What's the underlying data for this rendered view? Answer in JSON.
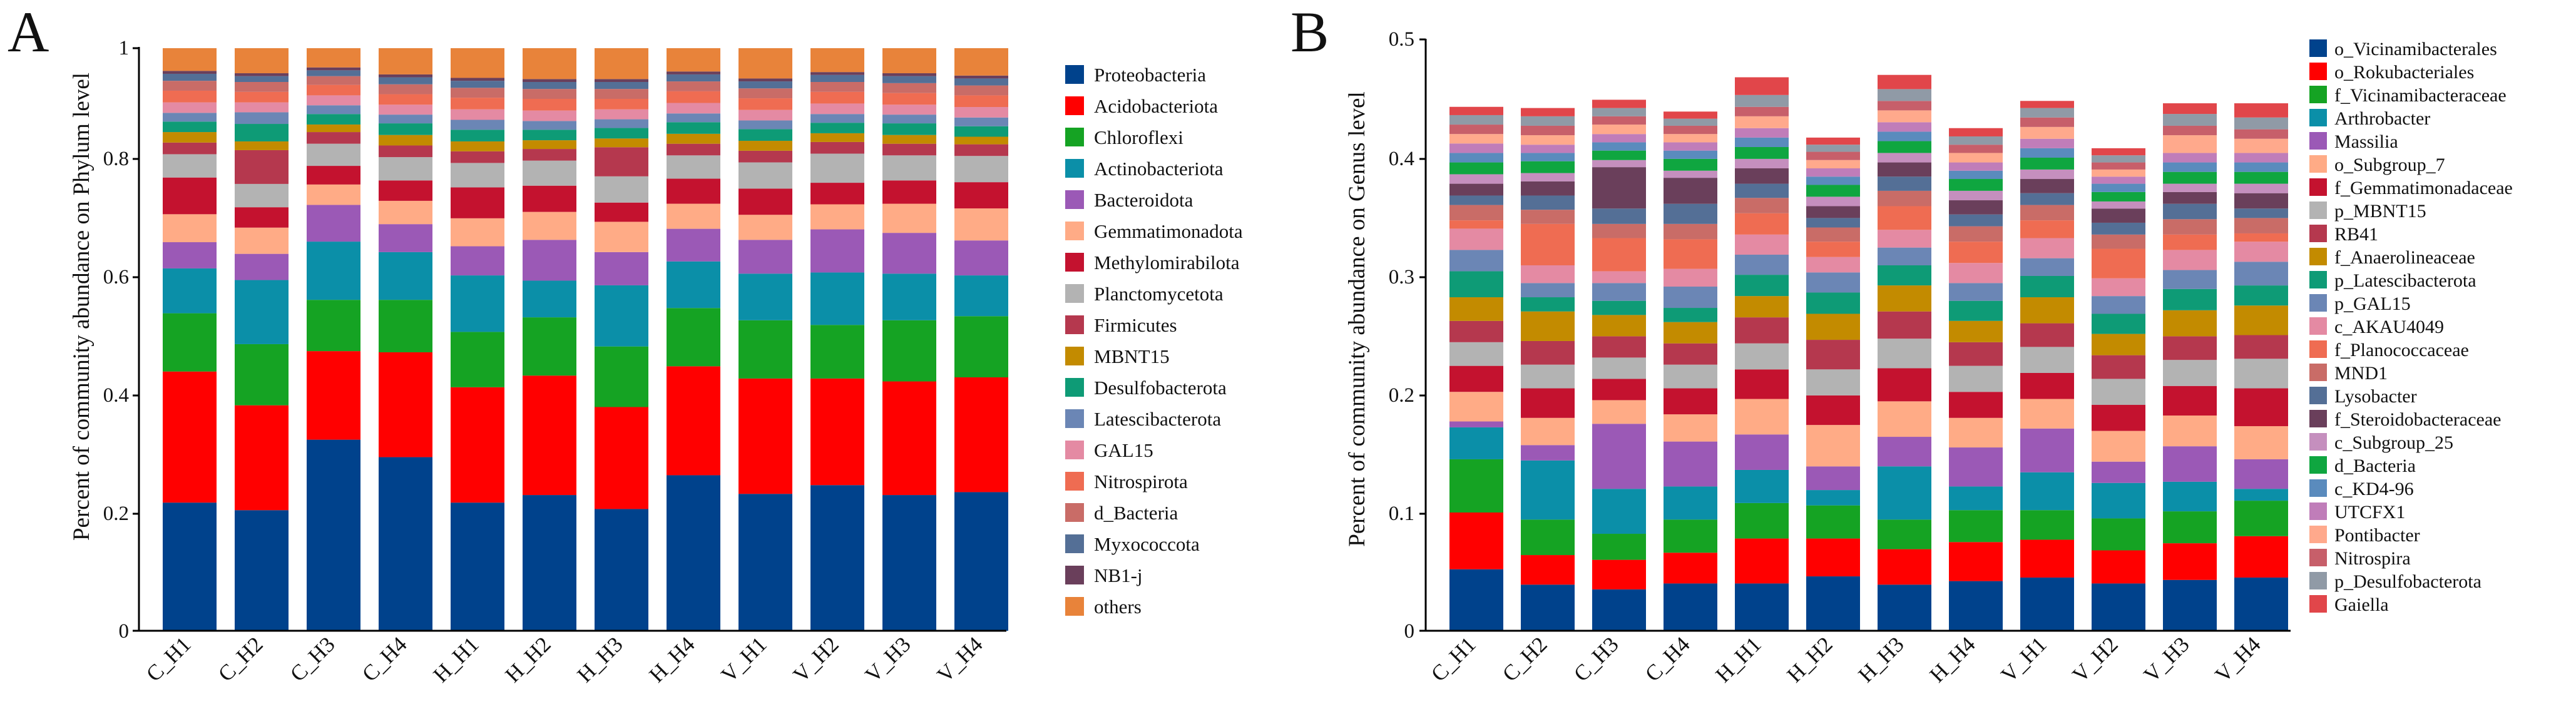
{
  "chart_data": [
    {
      "type": "bar",
      "stacked": true,
      "panel_label": "A",
      "title": "",
      "xlabel": "",
      "ylabel": "Percent of community abundance on Phylum level",
      "ylim": [
        0,
        1
      ],
      "yticks": [
        "0",
        "0.2",
        "0.4",
        "0.6",
        "0.8",
        "1"
      ],
      "legend_position": "right",
      "categories": [
        "C_H1",
        "C_H2",
        "C_H3",
        "C_H4",
        "H_H1",
        "H_H2",
        "H_H3",
        "H_H4",
        "V_H1",
        "V_H2",
        "V_H3",
        "V_H4"
      ],
      "series": [
        {
          "name": "Proteobacteria",
          "color": "#00428c",
          "values": [
            0.22,
            0.207,
            0.328,
            0.298,
            0.22,
            0.233,
            0.209,
            0.267,
            0.235,
            0.25,
            0.233,
            0.238
          ]
        },
        {
          "name": "Acidobacteriota",
          "color": "#ff0000",
          "values": [
            0.225,
            0.18,
            0.152,
            0.18,
            0.198,
            0.205,
            0.175,
            0.187,
            0.198,
            0.183,
            0.195,
            0.197
          ]
        },
        {
          "name": "Chloroflexi",
          "color": "#15a323",
          "values": [
            0.1,
            0.105,
            0.088,
            0.09,
            0.095,
            0.1,
            0.104,
            0.1,
            0.1,
            0.092,
            0.105,
            0.105
          ]
        },
        {
          "name": "Actinobacteriota",
          "color": "#0b8fa8",
          "values": [
            0.077,
            0.11,
            0.1,
            0.082,
            0.097,
            0.063,
            0.105,
            0.08,
            0.08,
            0.09,
            0.08,
            0.07
          ]
        },
        {
          "name": "Bacteroidota",
          "color": "#9b59b6",
          "values": [
            0.045,
            0.045,
            0.063,
            0.048,
            0.05,
            0.07,
            0.057,
            0.056,
            0.058,
            0.074,
            0.07,
            0.06
          ]
        },
        {
          "name": "Gemmatimonadota",
          "color": "#ffab86",
          "values": [
            0.048,
            0.045,
            0.035,
            0.04,
            0.048,
            0.048,
            0.052,
            0.043,
            0.043,
            0.043,
            0.05,
            0.055
          ]
        },
        {
          "name": "Methylomirabilota",
          "color": "#c4122f",
          "values": [
            0.063,
            0.035,
            0.032,
            0.035,
            0.053,
            0.045,
            0.033,
            0.043,
            0.045,
            0.037,
            0.04,
            0.045
          ]
        },
        {
          "name": "Planctomycetota",
          "color": "#b3b3b3",
          "values": [
            0.04,
            0.04,
            0.038,
            0.04,
            0.042,
            0.043,
            0.045,
            0.04,
            0.045,
            0.05,
            0.043,
            0.045
          ]
        },
        {
          "name": "Firmicutes",
          "color": "#b5384e",
          "values": [
            0.02,
            0.058,
            0.02,
            0.02,
            0.02,
            0.02,
            0.05,
            0.02,
            0.02,
            0.02,
            0.02,
            0.02
          ]
        },
        {
          "name": "MBNT15",
          "color": "#c38b00",
          "values": [
            0.018,
            0.015,
            0.013,
            0.018,
            0.017,
            0.015,
            0.015,
            0.017,
            0.017,
            0.015,
            0.015,
            0.013
          ]
        },
        {
          "name": "Desulfobacterota",
          "color": "#0e9b76",
          "values": [
            0.018,
            0.03,
            0.018,
            0.02,
            0.02,
            0.018,
            0.018,
            0.02,
            0.02,
            0.018,
            0.02,
            0.018
          ]
        },
        {
          "name": "Latescibacterota",
          "color": "#6b86b5",
          "values": [
            0.015,
            0.02,
            0.015,
            0.015,
            0.017,
            0.015,
            0.015,
            0.015,
            0.015,
            0.015,
            0.015,
            0.015
          ]
        },
        {
          "name": "GAL15",
          "color": "#e48aa3",
          "values": [
            0.018,
            0.017,
            0.017,
            0.017,
            0.018,
            0.018,
            0.017,
            0.018,
            0.018,
            0.018,
            0.017,
            0.018
          ]
        },
        {
          "name": "Nitrospirota",
          "color": "#ef6c52",
          "values": [
            0.02,
            0.018,
            0.018,
            0.018,
            0.02,
            0.02,
            0.018,
            0.02,
            0.02,
            0.02,
            0.02,
            0.02
          ]
        },
        {
          "name": "d_Bacteria",
          "color": "#c96c67",
          "values": [
            0.017,
            0.017,
            0.015,
            0.017,
            0.017,
            0.017,
            0.017,
            0.017,
            0.017,
            0.017,
            0.017,
            0.017
          ]
        },
        {
          "name": "Myxococcota",
          "color": "#546f96",
          "values": [
            0.012,
            0.01,
            0.01,
            0.012,
            0.012,
            0.012,
            0.012,
            0.012,
            0.012,
            0.012,
            0.012,
            0.012
          ]
        },
        {
          "name": "NB1-j",
          "color": "#6a3f5b",
          "values": [
            0.005,
            0.005,
            0.005,
            0.005,
            0.005,
            0.005,
            0.005,
            0.005,
            0.005,
            0.005,
            0.005,
            0.005
          ]
        },
        {
          "name": "others",
          "color": "#e8833a",
          "values": [
            0.039,
            0.043,
            0.033,
            0.045,
            0.051,
            0.053,
            0.053,
            0.04,
            0.052,
            0.041,
            0.043,
            0.047
          ]
        }
      ]
    },
    {
      "type": "bar",
      "stacked": true,
      "panel_label": "B",
      "title": "",
      "xlabel": "",
      "ylabel": "Percent of community abundance on Genus level",
      "ylim": [
        0,
        0.5
      ],
      "yticks": [
        "0",
        "0.1",
        "0.2",
        "0.3",
        "0.4",
        "0.5"
      ],
      "legend_position": "right",
      "categories": [
        "C_H1",
        "C_H2",
        "C_H3",
        "C_H4",
        "H_H1",
        "H_H2",
        "H_H3",
        "H_H4",
        "V_H1",
        "V_H2",
        "V_H3",
        "V_H4"
      ],
      "series": [
        {
          "name": "o_Vicinamibacterales",
          "color": "#00428c",
          "values": [
            0.052,
            0.039,
            0.035,
            0.04,
            0.04,
            0.046,
            0.039,
            0.042,
            0.045,
            0.04,
            0.043,
            0.045
          ]
        },
        {
          "name": "o_Rokubacteriales",
          "color": "#ff0000",
          "values": [
            0.048,
            0.025,
            0.025,
            0.026,
            0.038,
            0.032,
            0.03,
            0.033,
            0.032,
            0.028,
            0.031,
            0.035
          ]
        },
        {
          "name": "f_Vicinamibacteraceae",
          "color": "#15a323",
          "values": [
            0.045,
            0.03,
            0.022,
            0.028,
            0.03,
            0.028,
            0.025,
            0.027,
            0.025,
            0.027,
            0.027,
            0.03
          ]
        },
        {
          "name": "Arthrobacter",
          "color": "#0b8fa8",
          "values": [
            0.027,
            0.05,
            0.038,
            0.028,
            0.028,
            0.013,
            0.045,
            0.02,
            0.032,
            0.03,
            0.025,
            0.01
          ]
        },
        {
          "name": "Massilia",
          "color": "#9b59b6",
          "values": [
            0.005,
            0.013,
            0.055,
            0.038,
            0.03,
            0.02,
            0.025,
            0.033,
            0.037,
            0.018,
            0.03,
            0.025
          ]
        },
        {
          "name": "o_Subgroup_7",
          "color": "#ffab86",
          "values": [
            0.025,
            0.023,
            0.02,
            0.023,
            0.03,
            0.035,
            0.03,
            0.025,
            0.025,
            0.026,
            0.026,
            0.028
          ]
        },
        {
          "name": "f_Gemmatimonadaceae",
          "color": "#c4122f",
          "values": [
            0.022,
            0.025,
            0.018,
            0.022,
            0.025,
            0.025,
            0.028,
            0.022,
            0.022,
            0.022,
            0.025,
            0.032
          ]
        },
        {
          "name": "p_MBNT15",
          "color": "#b3b3b3",
          "values": [
            0.02,
            0.02,
            0.018,
            0.02,
            0.022,
            0.022,
            0.025,
            0.022,
            0.022,
            0.022,
            0.022,
            0.025
          ]
        },
        {
          "name": "RB41",
          "color": "#b5384e",
          "values": [
            0.018,
            0.02,
            0.018,
            0.018,
            0.022,
            0.025,
            0.023,
            0.02,
            0.02,
            0.02,
            0.02,
            0.02
          ]
        },
        {
          "name": "f_Anaerolineaceae",
          "color": "#c38b00",
          "values": [
            0.02,
            0.025,
            0.018,
            0.018,
            0.018,
            0.022,
            0.022,
            0.018,
            0.022,
            0.018,
            0.022,
            0.025
          ]
        },
        {
          "name": "p_Latescibacterota",
          "color": "#0e9b76",
          "values": [
            0.022,
            0.012,
            0.012,
            0.012,
            0.018,
            0.018,
            0.017,
            0.017,
            0.018,
            0.017,
            0.018,
            0.017
          ]
        },
        {
          "name": "p_GAL15",
          "color": "#6b86b5",
          "values": [
            0.018,
            0.012,
            0.015,
            0.018,
            0.017,
            0.017,
            0.015,
            0.015,
            0.015,
            0.015,
            0.016,
            0.02
          ]
        },
        {
          "name": "c_AKAU4049",
          "color": "#e48aa3",
          "values": [
            0.018,
            0.015,
            0.01,
            0.015,
            0.017,
            0.013,
            0.015,
            0.017,
            0.017,
            0.015,
            0.017,
            0.017
          ]
        },
        {
          "name": "f_Planococcaceae",
          "color": "#ef6c52",
          "values": [
            0.007,
            0.035,
            0.028,
            0.025,
            0.018,
            0.013,
            0.02,
            0.018,
            0.015,
            0.025,
            0.013,
            0.007
          ]
        },
        {
          "name": "MND1",
          "color": "#c96c67",
          "values": [
            0.013,
            0.012,
            0.012,
            0.013,
            0.013,
            0.012,
            0.013,
            0.013,
            0.013,
            0.012,
            0.013,
            0.013
          ]
        },
        {
          "name": "Lysobacter",
          "color": "#546f96",
          "values": [
            0.008,
            0.012,
            0.013,
            0.017,
            0.012,
            0.008,
            0.012,
            0.01,
            0.01,
            0.01,
            0.013,
            0.008
          ]
        },
        {
          "name": "f_Steroidobacteraceae",
          "color": "#6a3f5b",
          "values": [
            0.01,
            0.012,
            0.035,
            0.022,
            0.013,
            0.01,
            0.012,
            0.012,
            0.012,
            0.012,
            0.01,
            0.013
          ]
        },
        {
          "name": "c_Subgroup_25",
          "color": "#c58fbe",
          "values": [
            0.008,
            0.007,
            0.006,
            0.006,
            0.008,
            0.008,
            0.008,
            0.008,
            0.008,
            0.006,
            0.007,
            0.008
          ]
        },
        {
          "name": "d_Bacteria",
          "color": "#0fa640",
          "values": [
            0.01,
            0.01,
            0.008,
            0.01,
            0.01,
            0.01,
            0.01,
            0.01,
            0.01,
            0.008,
            0.01,
            0.01
          ]
        },
        {
          "name": "c_KD4-96",
          "color": "#5a8bbd",
          "values": [
            0.008,
            0.007,
            0.007,
            0.007,
            0.008,
            0.007,
            0.008,
            0.007,
            0.008,
            0.007,
            0.008,
            0.008
          ]
        },
        {
          "name": "UTCFX1",
          "color": "#c07db9",
          "values": [
            0.008,
            0.007,
            0.007,
            0.007,
            0.008,
            0.007,
            0.008,
            0.007,
            0.008,
            0.006,
            0.008,
            0.008
          ]
        },
        {
          "name": "Pontibacter",
          "color": "#ffa98c",
          "values": [
            0.008,
            0.008,
            0.008,
            0.007,
            0.01,
            0.007,
            0.01,
            0.008,
            0.01,
            0.006,
            0.015,
            0.012
          ]
        },
        {
          "name": "Nitrospira",
          "color": "#c75f6a",
          "values": [
            0.008,
            0.008,
            0.007,
            0.007,
            0.008,
            0.007,
            0.008,
            0.007,
            0.008,
            0.006,
            0.008,
            0.008
          ]
        },
        {
          "name": "p_Desulfobacterota",
          "color": "#909aa6",
          "values": [
            0.008,
            0.008,
            0.007,
            0.006,
            0.01,
            0.006,
            0.01,
            0.007,
            0.008,
            0.006,
            0.01,
            0.01
          ]
        },
        {
          "name": "Gaiella",
          "color": "#e1464a",
          "values": [
            0.007,
            0.007,
            0.007,
            0.006,
            0.015,
            0.006,
            0.012,
            0.007,
            0.006,
            0.006,
            0.009,
            0.012
          ]
        }
      ]
    }
  ]
}
